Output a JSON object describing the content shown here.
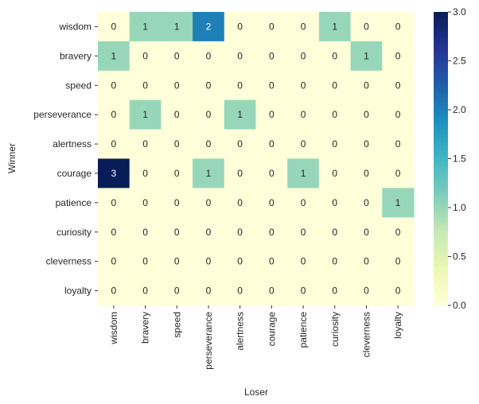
{
  "chart_data": {
    "type": "heatmap",
    "title": "",
    "xlabel": "Loser",
    "ylabel": "Winner",
    "x_categories": [
      "wisdom",
      "bravery",
      "speed",
      "perseverance",
      "alertness",
      "courage",
      "patience",
      "curiosity",
      "cleverness",
      "loyalty"
    ],
    "y_categories": [
      "wisdom",
      "bravery",
      "speed",
      "perseverance",
      "alertness",
      "courage",
      "patience",
      "curiosity",
      "cleverness",
      "loyalty"
    ],
    "values": [
      [
        0,
        1,
        1,
        2,
        0,
        0,
        0,
        1,
        0,
        0
      ],
      [
        1,
        0,
        0,
        0,
        0,
        0,
        0,
        0,
        1,
        0
      ],
      [
        0,
        0,
        0,
        0,
        0,
        0,
        0,
        0,
        0,
        0
      ],
      [
        0,
        1,
        0,
        0,
        1,
        0,
        0,
        0,
        0,
        0
      ],
      [
        0,
        0,
        0,
        0,
        0,
        0,
        0,
        0,
        0,
        0
      ],
      [
        3,
        0,
        0,
        1,
        0,
        0,
        1,
        0,
        0,
        0
      ],
      [
        0,
        0,
        0,
        0,
        0,
        0,
        0,
        0,
        0,
        1
      ],
      [
        0,
        0,
        0,
        0,
        0,
        0,
        0,
        0,
        0,
        0
      ],
      [
        0,
        0,
        0,
        0,
        0,
        0,
        0,
        0,
        0,
        0
      ],
      [
        0,
        0,
        0,
        0,
        0,
        0,
        0,
        0,
        0,
        0
      ]
    ],
    "colormap": "YlGnBu",
    "colormap_stops": [
      "#ffffd9",
      "#edf8b1",
      "#c7e9b4",
      "#7fcdbb",
      "#41b6c4",
      "#1d91c0",
      "#225ea8",
      "#253494",
      "#081d58"
    ],
    "vmin": 0,
    "vmax": 3,
    "colorbar_ticks": [
      "0.0",
      "0.5",
      "1.0",
      "1.5",
      "2.0",
      "2.5",
      "3.0"
    ],
    "annotate": true
  }
}
